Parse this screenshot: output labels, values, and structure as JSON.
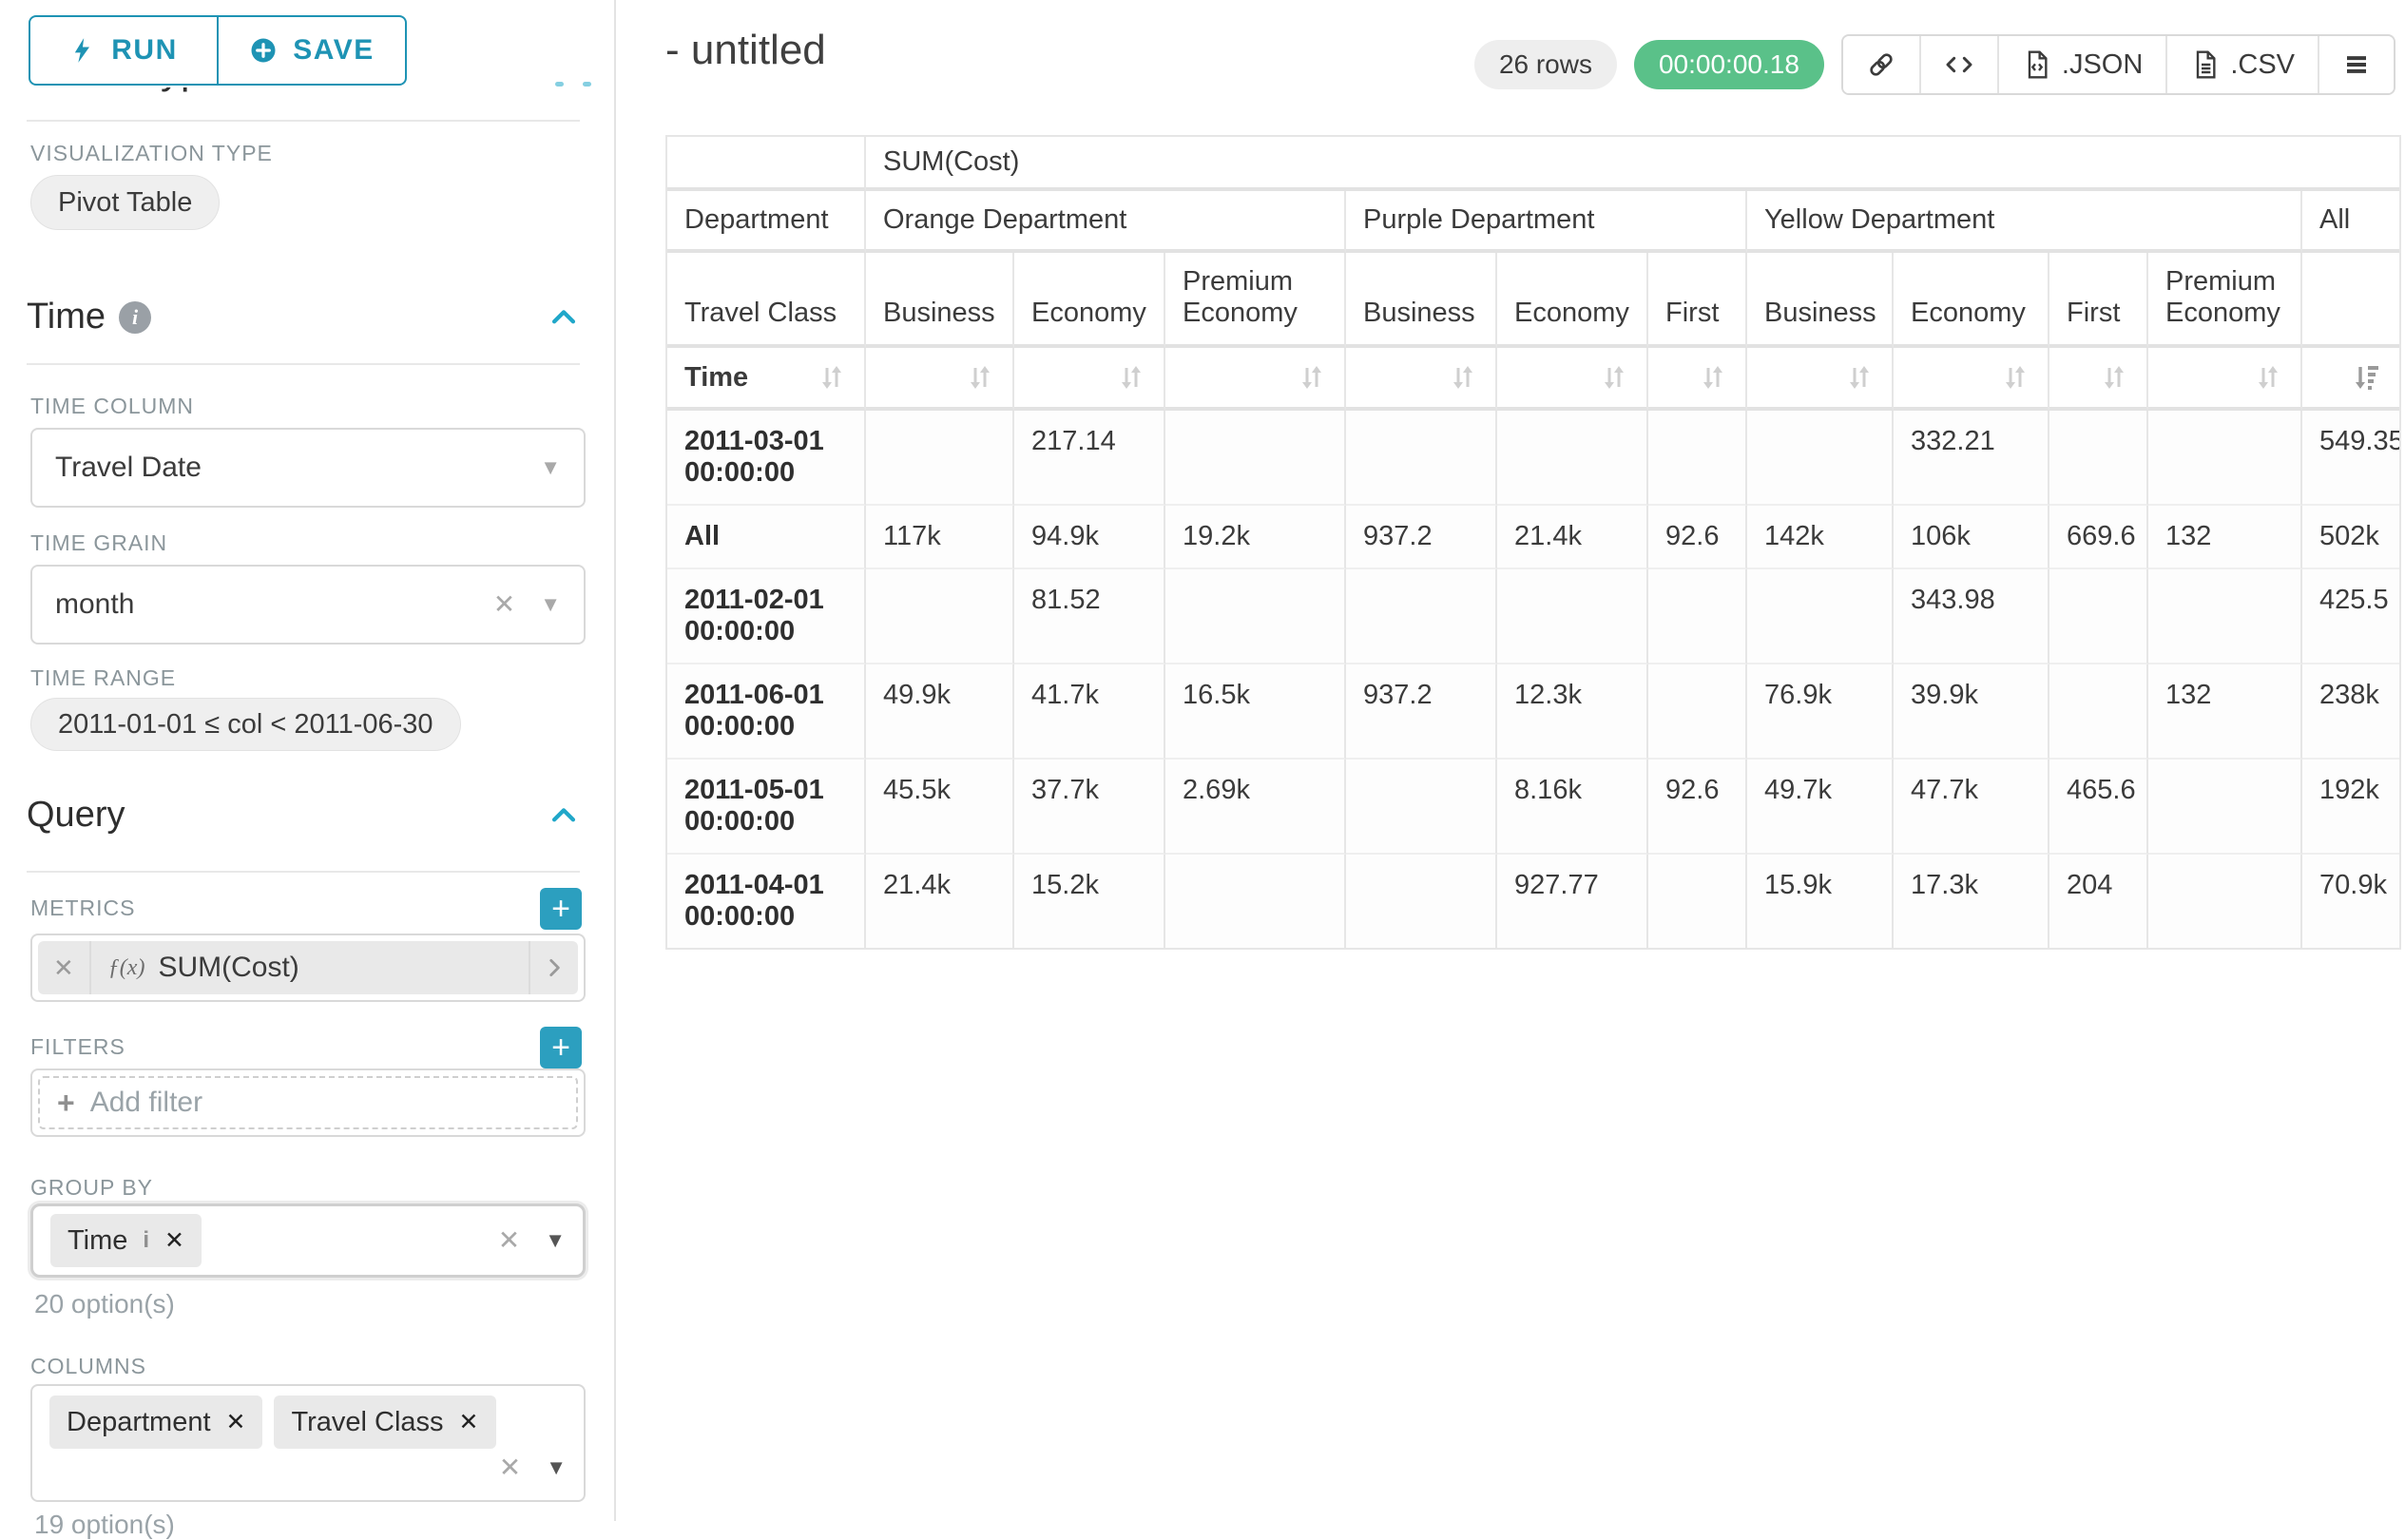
{
  "accent_color": "#20a7c9",
  "timer_color": "#5ac189",
  "icons": {
    "close": "✕",
    "caret_down": "▼",
    "plus": "+",
    "fx": "ƒ(x)",
    "info": "i"
  },
  "sidebar": {
    "run_label": "RUN",
    "save_label": "SAVE",
    "chart_type_heading": "Chart Type",
    "viz_type_label": "VISUALIZATION TYPE",
    "viz_type_value": "Pivot Table",
    "time_section": {
      "title": "Time",
      "time_column_label": "TIME COLUMN",
      "time_column_value": "Travel Date",
      "time_grain_label": "TIME GRAIN",
      "time_grain_value": "month",
      "time_range_label": "TIME RANGE",
      "time_range_value": "2011-01-01 ≤ col < 2011-06-30"
    },
    "query_section": {
      "title": "Query",
      "metrics_label": "METRICS",
      "metric_value": "SUM(Cost)",
      "filters_label": "FILTERS",
      "add_filter_label": "Add filter",
      "group_by_label": "GROUP BY",
      "group_by_values": [
        "Time"
      ],
      "group_by_hint": "20 option(s)",
      "columns_label": "COLUMNS",
      "columns_values": [
        "Department",
        "Travel Class"
      ],
      "columns_hint": "19 option(s)"
    }
  },
  "header": {
    "title": "- untitled",
    "rows_badge": "26 rows",
    "timer": "00:00:00.18",
    "export_json_label": ".JSON",
    "export_csv_label": ".CSV"
  },
  "table": {
    "metric_header": "SUM(Cost)",
    "corner": {
      "department": "Department",
      "travel_class": "Travel Class",
      "time": "Time"
    },
    "groups": [
      {
        "label": "Orange Department",
        "span": 3
      },
      {
        "label": "Purple Department",
        "span": 3
      },
      {
        "label": "Yellow Department",
        "span": 4
      },
      {
        "label": "All",
        "span": 1
      }
    ],
    "sub_headers": [
      "Business",
      "Economy",
      "Premium Economy",
      "Business",
      "Economy",
      "First",
      "Business",
      "Economy",
      "First",
      "Premium Economy"
    ],
    "rows": [
      {
        "label": "2011-03-01 00:00:00",
        "values": [
          "",
          "217.14",
          "",
          "",
          "",
          "",
          "",
          "332.21",
          "",
          "",
          "549.35"
        ]
      },
      {
        "label": "All",
        "values": [
          "117k",
          "94.9k",
          "19.2k",
          "937.2",
          "21.4k",
          "92.6",
          "142k",
          "106k",
          "669.6",
          "132",
          "502k"
        ]
      },
      {
        "label": "2011-02-01 00:00:00",
        "values": [
          "",
          "81.52",
          "",
          "",
          "",
          "",
          "",
          "343.98",
          "",
          "",
          "425.5"
        ]
      },
      {
        "label": "2011-06-01 00:00:00",
        "values": [
          "49.9k",
          "41.7k",
          "16.5k",
          "937.2",
          "12.3k",
          "",
          "76.9k",
          "39.9k",
          "",
          "132",
          "238k"
        ]
      },
      {
        "label": "2011-05-01 00:00:00",
        "values": [
          "45.5k",
          "37.7k",
          "2.69k",
          "",
          "8.16k",
          "92.6",
          "49.7k",
          "47.7k",
          "465.6",
          "",
          "192k"
        ]
      },
      {
        "label": "2011-04-01 00:00:00",
        "values": [
          "21.4k",
          "15.2k",
          "",
          "",
          "927.77",
          "",
          "15.9k",
          "17.3k",
          "204",
          "",
          "70.9k"
        ]
      }
    ]
  }
}
